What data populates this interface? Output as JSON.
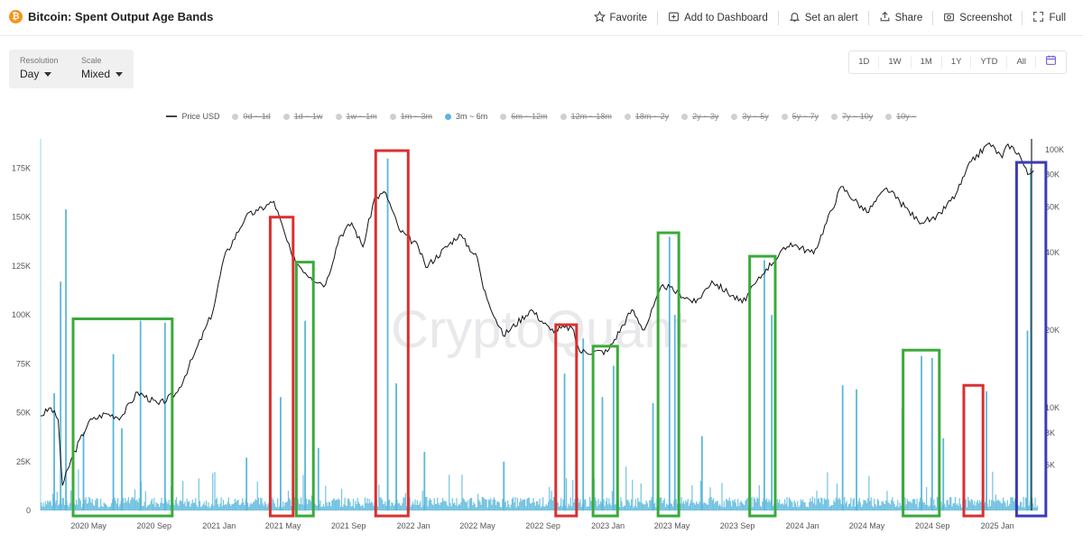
{
  "header": {
    "title": "Bitcoin: Spent Output Age Bands",
    "actions": [
      {
        "label": "Favorite",
        "icon": "star-icon"
      },
      {
        "label": "Add to Dashboard",
        "icon": "dashboard-add-icon"
      },
      {
        "label": "Set an alert",
        "icon": "bell-icon"
      },
      {
        "label": "Share",
        "icon": "share-icon"
      },
      {
        "label": "Screenshot",
        "icon": "camera-icon"
      },
      {
        "label": "Full",
        "icon": "fullscreen-icon"
      }
    ]
  },
  "controls": {
    "resolution": {
      "label": "Resolution",
      "value": "Day"
    },
    "scale": {
      "label": "Scale",
      "value": "Mixed"
    }
  },
  "ranges": [
    "1D",
    "1W",
    "1M",
    "1Y",
    "YTD",
    "All"
  ],
  "legend": [
    {
      "label": "Price USD",
      "type": "line",
      "active": true
    },
    {
      "label": "0d ~ 1d",
      "type": "dot",
      "active": false
    },
    {
      "label": "1d ~ 1w",
      "type": "dot",
      "active": false
    },
    {
      "label": "1w ~ 1m",
      "type": "dot",
      "active": false
    },
    {
      "label": "1m ~ 3m",
      "type": "dot",
      "active": false
    },
    {
      "label": "3m ~ 6m",
      "type": "dot",
      "active": true
    },
    {
      "label": "6m ~ 12m",
      "type": "dot",
      "active": false
    },
    {
      "label": "12m ~ 18m",
      "type": "dot",
      "active": false
    },
    {
      "label": "18m ~ 2y",
      "type": "dot",
      "active": false
    },
    {
      "label": "2y ~ 3y",
      "type": "dot",
      "active": false
    },
    {
      "label": "3y ~ 5y",
      "type": "dot",
      "active": false
    },
    {
      "label": "5y ~ 7y",
      "type": "dot",
      "active": false
    },
    {
      "label": "7y ~ 10y",
      "type": "dot",
      "active": false
    },
    {
      "label": "10y ~",
      "type": "dot",
      "active": false
    }
  ],
  "watermark": "CryptoQuant",
  "colors": {
    "bars": "#5bb7da",
    "price": "#111111",
    "red_box": "#d93030",
    "green_box": "#3aaa3a",
    "blue_box": "#3b3bb8"
  },
  "chart_data": {
    "type": "bar",
    "x_range": [
      "2020-02-01",
      "2025-03-18"
    ],
    "x_ticks": [
      "2020 May",
      "2020 Sep",
      "2021 Jan",
      "2021 May",
      "2021 Sep",
      "2022 Jan",
      "2022 May",
      "2022 Sep",
      "2023 Jan",
      "2023 May",
      "2023 Sep",
      "2024 Jan",
      "2024 May",
      "2024 Sep",
      "2025 Jan"
    ],
    "y_left": {
      "ticks": [
        "0",
        "25K",
        "50K",
        "75K",
        "100K",
        "125K",
        "150K",
        "175K"
      ],
      "range": [
        0,
        190000
      ]
    },
    "y_right": {
      "scale": "log",
      "ticks": [
        "6K",
        "8K",
        "10K",
        "20K",
        "40K",
        "60K",
        "80K",
        "100K"
      ],
      "range": [
        4000,
        110000
      ]
    },
    "series": [
      {
        "name": "3m ~ 6m",
        "type": "bar",
        "spikes": [
          {
            "date": "2020-02-25",
            "value": 60000
          },
          {
            "date": "2020-03-08",
            "value": 117000
          },
          {
            "date": "2020-03-18",
            "value": 154000
          },
          {
            "date": "2020-04-20",
            "value": 40000
          },
          {
            "date": "2020-06-15",
            "value": 80000
          },
          {
            "date": "2020-07-01",
            "value": 42000
          },
          {
            "date": "2020-08-05",
            "value": 97000
          },
          {
            "date": "2020-09-20",
            "value": 96000
          },
          {
            "date": "2021-02-20",
            "value": 27000
          },
          {
            "date": "2021-04-25",
            "value": 58000
          },
          {
            "date": "2021-05-18",
            "value": 55000
          },
          {
            "date": "2021-06-10",
            "value": 97000
          },
          {
            "date": "2021-07-05",
            "value": 32000
          },
          {
            "date": "2021-11-12",
            "value": 180000
          },
          {
            "date": "2021-11-28",
            "value": 65000
          },
          {
            "date": "2022-01-20",
            "value": 30000
          },
          {
            "date": "2022-06-18",
            "value": 25000
          },
          {
            "date": "2022-10-10",
            "value": 70000
          },
          {
            "date": "2022-11-14",
            "value": 88000
          },
          {
            "date": "2022-12-20",
            "value": 58000
          },
          {
            "date": "2023-01-10",
            "value": 74000
          },
          {
            "date": "2023-03-25",
            "value": 55000
          },
          {
            "date": "2023-04-25",
            "value": 140000
          },
          {
            "date": "2023-05-05",
            "value": 100000
          },
          {
            "date": "2023-06-25",
            "value": 38000
          },
          {
            "date": "2023-10-20",
            "value": 128000
          },
          {
            "date": "2023-11-03",
            "value": 100000
          },
          {
            "date": "2024-03-15",
            "value": 64000
          },
          {
            "date": "2024-04-10",
            "value": 62000
          },
          {
            "date": "2024-07-05",
            "value": 52000
          },
          {
            "date": "2024-08-10",
            "value": 79000
          },
          {
            "date": "2024-08-30",
            "value": 78000
          },
          {
            "date": "2024-09-20",
            "value": 37000
          },
          {
            "date": "2024-12-10",
            "value": 61000
          },
          {
            "date": "2025-02-25",
            "value": 92000
          },
          {
            "date": "2025-03-03",
            "value": 175000
          }
        ]
      },
      {
        "name": "Price USD",
        "type": "line",
        "axis": "right",
        "points": [
          {
            "date": "2020-02-01",
            "value": 9300
          },
          {
            "date": "2020-02-20",
            "value": 10000
          },
          {
            "date": "2020-03-05",
            "value": 9000
          },
          {
            "date": "2020-03-13",
            "value": 5000
          },
          {
            "date": "2020-04-01",
            "value": 6500
          },
          {
            "date": "2020-05-01",
            "value": 8800
          },
          {
            "date": "2020-06-01",
            "value": 9500
          },
          {
            "date": "2020-07-01",
            "value": 9200
          },
          {
            "date": "2020-08-01",
            "value": 11500
          },
          {
            "date": "2020-09-10",
            "value": 10300
          },
          {
            "date": "2020-10-15",
            "value": 11500
          },
          {
            "date": "2020-11-15",
            "value": 16000
          },
          {
            "date": "2020-12-20",
            "value": 23500
          },
          {
            "date": "2021-01-10",
            "value": 38000
          },
          {
            "date": "2021-02-20",
            "value": 55000
          },
          {
            "date": "2021-03-15",
            "value": 58000
          },
          {
            "date": "2021-04-14",
            "value": 63000
          },
          {
            "date": "2021-05-19",
            "value": 38000
          },
          {
            "date": "2021-06-22",
            "value": 32000
          },
          {
            "date": "2021-07-20",
            "value": 30000
          },
          {
            "date": "2021-08-15",
            "value": 46000
          },
          {
            "date": "2021-09-07",
            "value": 52000
          },
          {
            "date": "2021-09-28",
            "value": 42000
          },
          {
            "date": "2021-10-20",
            "value": 65000
          },
          {
            "date": "2021-11-10",
            "value": 68000
          },
          {
            "date": "2021-12-05",
            "value": 49000
          },
          {
            "date": "2022-01-10",
            "value": 42000
          },
          {
            "date": "2022-01-24",
            "value": 35000
          },
          {
            "date": "2022-03-28",
            "value": 47000
          },
          {
            "date": "2022-05-01",
            "value": 38000
          },
          {
            "date": "2022-05-12",
            "value": 29000
          },
          {
            "date": "2022-06-18",
            "value": 19000
          },
          {
            "date": "2022-08-10",
            "value": 24000
          },
          {
            "date": "2022-09-15",
            "value": 20000
          },
          {
            "date": "2022-10-25",
            "value": 20500
          },
          {
            "date": "2022-11-09",
            "value": 16500
          },
          {
            "date": "2022-12-31",
            "value": 16500
          },
          {
            "date": "2023-02-15",
            "value": 24000
          },
          {
            "date": "2023-03-10",
            "value": 20000
          },
          {
            "date": "2023-04-14",
            "value": 30000
          },
          {
            "date": "2023-06-15",
            "value": 25500
          },
          {
            "date": "2023-07-15",
            "value": 31000
          },
          {
            "date": "2023-09-10",
            "value": 25500
          },
          {
            "date": "2023-10-25",
            "value": 34500
          },
          {
            "date": "2023-12-10",
            "value": 43500
          },
          {
            "date": "2024-01-22",
            "value": 39500
          },
          {
            "date": "2024-03-14",
            "value": 72000
          },
          {
            "date": "2024-05-01",
            "value": 57000
          },
          {
            "date": "2024-06-07",
            "value": 71000
          },
          {
            "date": "2024-08-05",
            "value": 53000
          },
          {
            "date": "2024-09-06",
            "value": 53500
          },
          {
            "date": "2024-10-15",
            "value": 67000
          },
          {
            "date": "2024-11-13",
            "value": 90000
          },
          {
            "date": "2024-12-17",
            "value": 106000
          },
          {
            "date": "2025-01-10",
            "value": 93000
          },
          {
            "date": "2025-01-21",
            "value": 105000
          },
          {
            "date": "2025-02-10",
            "value": 97000
          },
          {
            "date": "2025-02-27",
            "value": 80000
          },
          {
            "date": "2025-03-10",
            "value": 83000
          }
        ]
      }
    ],
    "annotations": [
      {
        "color": "red",
        "from": "2021-04-07",
        "to": "2021-05-20",
        "value_top": 150000
      },
      {
        "color": "red",
        "from": "2021-10-22",
        "to": "2021-12-22",
        "value_top": 184000
      },
      {
        "color": "red",
        "from": "2022-09-25",
        "to": "2022-11-03",
        "value_top": 95000
      },
      {
        "color": "red",
        "from": "2024-10-30",
        "to": "2024-12-05",
        "value_top": 64000
      },
      {
        "color": "green",
        "from": "2020-04-02",
        "to": "2020-10-05",
        "value_top": 98000
      },
      {
        "color": "green",
        "from": "2021-05-26",
        "to": "2021-06-27",
        "value_top": 127000
      },
      {
        "color": "green",
        "from": "2022-12-04",
        "to": "2023-01-19",
        "value_top": 84000
      },
      {
        "color": "green",
        "from": "2023-04-05",
        "to": "2023-05-14",
        "value_top": 142000
      },
      {
        "color": "green",
        "from": "2023-09-24",
        "to": "2023-11-11",
        "value_top": 130000
      },
      {
        "color": "green",
        "from": "2024-07-08",
        "to": "2024-09-14",
        "value_top": 82000
      },
      {
        "color": "blue",
        "from": "2025-02-06",
        "to": "2025-04-02",
        "value_top": 178000
      }
    ]
  }
}
